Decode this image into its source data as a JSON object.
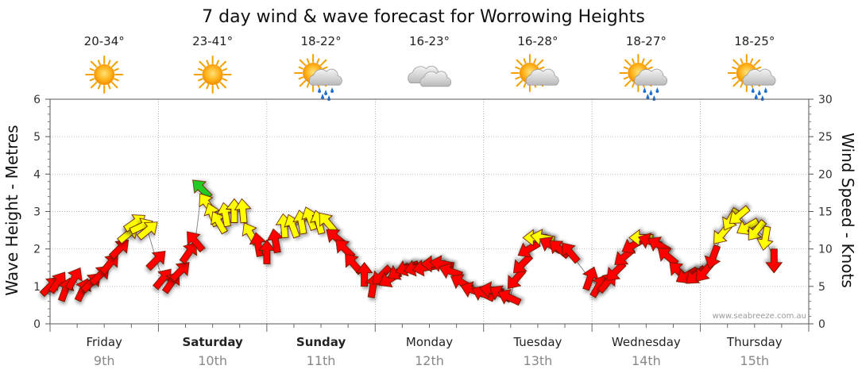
{
  "chart_data": {
    "type": "scatter",
    "title": "7 day wind & wave forecast for Worrowing Heights",
    "ylabel_left": "Wave Height - Metres",
    "ylabel_right": "Wind Speed - Knots",
    "ylim_left": [
      0,
      6
    ],
    "ylim_right": [
      0,
      30
    ],
    "yticks_left": [
      "0",
      "1",
      "2",
      "3",
      "4",
      "5",
      "6"
    ],
    "yticks_right": [
      "0",
      "5",
      "10",
      "15",
      "20",
      "25",
      "30"
    ],
    "grid": true,
    "credit": "www.seabreeze.com.au",
    "days": [
      {
        "day": "Friday",
        "date": "9th",
        "temp": "20-34°",
        "icon": "sunny-icon",
        "bold": false
      },
      {
        "day": "Saturday",
        "date": "10th",
        "temp": "23-41°",
        "icon": "sunny-icon",
        "bold": true
      },
      {
        "day": "Sunday",
        "date": "11th",
        "temp": "18-22°",
        "icon": "sun-cloud-rain-icon",
        "bold": true
      },
      {
        "day": "Monday",
        "date": "12th",
        "temp": "16-23°",
        "icon": "cloud-icon",
        "bold": false
      },
      {
        "day": "Tuesday",
        "date": "13th",
        "temp": "16-28°",
        "icon": "sun-cloud-icon",
        "bold": false
      },
      {
        "day": "Wednesday",
        "date": "14th",
        "temp": "18-27°",
        "icon": "sun-cloud-rain-icon",
        "bold": false
      },
      {
        "day": "Thursday",
        "date": "15th",
        "temp": "18-25°",
        "icon": "sun-cloud-rain-icon",
        "bold": false
      }
    ],
    "wind_colors": {
      "light": "#22cc22",
      "moderate": "#ffff00",
      "strong": "#ff0000"
    },
    "series": [
      {
        "name": "wind",
        "points": [
          {
            "t": 0.0,
            "wave": 1.0,
            "dir": 225,
            "c": "strong"
          },
          {
            "t": 0.07,
            "wave": 1.1,
            "dir": 215,
            "c": "strong"
          },
          {
            "t": 0.14,
            "wave": 0.9,
            "dir": 200,
            "c": "strong"
          },
          {
            "t": 0.22,
            "wave": 1.2,
            "dir": 210,
            "c": "strong"
          },
          {
            "t": 0.3,
            "wave": 0.9,
            "dir": 205,
            "c": "strong"
          },
          {
            "t": 0.38,
            "wave": 1.1,
            "dir": 225,
            "c": "strong"
          },
          {
            "t": 0.46,
            "wave": 1.3,
            "dir": 225,
            "c": "strong"
          },
          {
            "t": 0.55,
            "wave": 1.6,
            "dir": 220,
            "c": "strong"
          },
          {
            "t": 0.64,
            "wave": 2.0,
            "dir": 225,
            "c": "strong"
          },
          {
            "t": 0.72,
            "wave": 2.4,
            "dir": 230,
            "c": "yellow"
          },
          {
            "t": 0.78,
            "wave": 2.7,
            "dir": 235,
            "c": "yellow"
          },
          {
            "t": 0.84,
            "wave": 2.6,
            "dir": 245,
            "c": "yellow"
          },
          {
            "t": 0.9,
            "wave": 2.5,
            "dir": 230,
            "c": "yellow"
          },
          {
            "t": 0.98,
            "wave": 1.7,
            "dir": 225,
            "c": "strong"
          },
          {
            "t": 1.04,
            "wave": 1.2,
            "dir": 220,
            "c": "strong"
          },
          {
            "t": 1.12,
            "wave": 1.1,
            "dir": 215,
            "c": "strong"
          },
          {
            "t": 1.2,
            "wave": 1.4,
            "dir": 225,
            "c": "strong"
          },
          {
            "t": 1.28,
            "wave": 1.9,
            "dir": 215,
            "c": "strong"
          },
          {
            "t": 1.34,
            "wave": 2.2,
            "dir": 140,
            "c": "strong"
          },
          {
            "t": 1.4,
            "wave": 3.6,
            "dir": 135,
            "c": "light"
          },
          {
            "t": 1.45,
            "wave": 3.2,
            "dir": 145,
            "c": "yellow"
          },
          {
            "t": 1.5,
            "wave": 2.9,
            "dir": 160,
            "c": "yellow"
          },
          {
            "t": 1.56,
            "wave": 2.7,
            "dir": 150,
            "c": "yellow"
          },
          {
            "t": 1.62,
            "wave": 2.9,
            "dir": 170,
            "c": "yellow"
          },
          {
            "t": 1.7,
            "wave": 3.0,
            "dir": 180,
            "c": "yellow"
          },
          {
            "t": 1.78,
            "wave": 3.0,
            "dir": 175,
            "c": "yellow"
          },
          {
            "t": 1.85,
            "wave": 2.4,
            "dir": 150,
            "c": "yellow"
          },
          {
            "t": 1.92,
            "wave": 2.1,
            "dir": 170,
            "c": "strong"
          },
          {
            "t": 2.0,
            "wave": 1.9,
            "dir": 180,
            "c": "strong"
          },
          {
            "t": 2.08,
            "wave": 2.2,
            "dir": 170,
            "c": "strong"
          },
          {
            "t": 2.16,
            "wave": 2.6,
            "dir": 175,
            "c": "yellow"
          },
          {
            "t": 2.24,
            "wave": 2.6,
            "dir": 160,
            "c": "yellow"
          },
          {
            "t": 2.32,
            "wave": 2.7,
            "dir": 170,
            "c": "yellow"
          },
          {
            "t": 2.4,
            "wave": 2.8,
            "dir": 160,
            "c": "yellow"
          },
          {
            "t": 2.48,
            "wave": 2.7,
            "dir": 165,
            "c": "yellow"
          },
          {
            "t": 2.56,
            "wave": 2.7,
            "dir": 140,
            "c": "yellow"
          },
          {
            "t": 2.64,
            "wave": 2.3,
            "dir": 130,
            "c": "strong"
          },
          {
            "t": 2.72,
            "wave": 2.0,
            "dir": 135,
            "c": "strong"
          },
          {
            "t": 2.8,
            "wave": 1.6,
            "dir": 140,
            "c": "strong"
          },
          {
            "t": 2.9,
            "wave": 1.3,
            "dir": 180,
            "c": "strong"
          },
          {
            "t": 2.98,
            "wave": 1.0,
            "dir": 190,
            "c": "strong"
          },
          {
            "t": 3.06,
            "wave": 1.3,
            "dir": 45,
            "c": "strong"
          },
          {
            "t": 3.14,
            "wave": 1.2,
            "dir": 60,
            "c": "strong"
          },
          {
            "t": 3.22,
            "wave": 1.4,
            "dir": 60,
            "c": "strong"
          },
          {
            "t": 3.3,
            "wave": 1.5,
            "dir": 70,
            "c": "strong"
          },
          {
            "t": 3.38,
            "wave": 1.5,
            "dir": 75,
            "c": "strong"
          },
          {
            "t": 3.46,
            "wave": 1.5,
            "dir": 80,
            "c": "strong"
          },
          {
            "t": 3.54,
            "wave": 1.6,
            "dir": 90,
            "c": "strong"
          },
          {
            "t": 3.62,
            "wave": 1.6,
            "dir": 100,
            "c": "strong"
          },
          {
            "t": 3.7,
            "wave": 1.4,
            "dir": 110,
            "c": "strong"
          },
          {
            "t": 3.8,
            "wave": 1.1,
            "dir": 120,
            "c": "strong"
          },
          {
            "t": 3.9,
            "wave": 0.9,
            "dir": 110,
            "c": "strong"
          },
          {
            "t": 4.0,
            "wave": 0.8,
            "dir": 115,
            "c": "strong"
          },
          {
            "t": 4.08,
            "wave": 0.9,
            "dir": 100,
            "c": "strong"
          },
          {
            "t": 4.16,
            "wave": 0.8,
            "dir": 120,
            "c": "strong"
          },
          {
            "t": 4.24,
            "wave": 0.7,
            "dir": 115,
            "c": "strong"
          },
          {
            "t": 4.3,
            "wave": 1.2,
            "dir": 40,
            "c": "strong"
          },
          {
            "t": 4.36,
            "wave": 1.6,
            "dir": 45,
            "c": "strong"
          },
          {
            "t": 4.42,
            "wave": 2.0,
            "dir": 60,
            "c": "strong"
          },
          {
            "t": 4.48,
            "wave": 2.3,
            "dir": 90,
            "c": "yellow"
          },
          {
            "t": 4.55,
            "wave": 2.3,
            "dir": 100,
            "c": "yellow"
          },
          {
            "t": 4.62,
            "wave": 2.1,
            "dir": 120,
            "c": "strong"
          },
          {
            "t": 4.7,
            "wave": 2.0,
            "dir": 130,
            "c": "strong"
          },
          {
            "t": 4.8,
            "wave": 1.9,
            "dir": 140,
            "c": "strong"
          },
          {
            "t": 4.98,
            "wave": 1.2,
            "dir": 200,
            "c": "strong"
          },
          {
            "t": 5.06,
            "wave": 1.0,
            "dir": 210,
            "c": "strong"
          },
          {
            "t": 5.14,
            "wave": 1.1,
            "dir": 220,
            "c": "strong"
          },
          {
            "t": 5.22,
            "wave": 1.4,
            "dir": 45,
            "c": "strong"
          },
          {
            "t": 5.3,
            "wave": 1.8,
            "dir": 50,
            "c": "strong"
          },
          {
            "t": 5.38,
            "wave": 2.1,
            "dir": 60,
            "c": "strong"
          },
          {
            "t": 5.46,
            "wave": 2.3,
            "dir": 90,
            "c": "yellow"
          },
          {
            "t": 5.54,
            "wave": 2.2,
            "dir": 110,
            "c": "strong"
          },
          {
            "t": 5.62,
            "wave": 2.1,
            "dir": 120,
            "c": "strong"
          },
          {
            "t": 5.7,
            "wave": 1.8,
            "dir": 130,
            "c": "strong"
          },
          {
            "t": 5.8,
            "wave": 1.4,
            "dir": 135,
            "c": "strong"
          },
          {
            "t": 5.88,
            "wave": 1.3,
            "dir": 60,
            "c": "strong"
          },
          {
            "t": 5.96,
            "wave": 1.3,
            "dir": 50,
            "c": "strong"
          },
          {
            "t": 6.04,
            "wave": 1.4,
            "dir": 40,
            "c": "strong"
          },
          {
            "t": 6.12,
            "wave": 1.8,
            "dir": 20,
            "c": "strong"
          },
          {
            "t": 6.2,
            "wave": 2.4,
            "dir": 40,
            "c": "yellow"
          },
          {
            "t": 6.28,
            "wave": 2.8,
            "dir": 30,
            "c": "yellow"
          },
          {
            "t": 6.36,
            "wave": 2.9,
            "dir": 50,
            "c": "yellow"
          },
          {
            "t": 6.44,
            "wave": 2.6,
            "dir": 60,
            "c": "yellow"
          },
          {
            "t": 6.52,
            "wave": 2.5,
            "dir": 40,
            "c": "yellow"
          },
          {
            "t": 6.6,
            "wave": 2.3,
            "dir": 10,
            "c": "yellow"
          },
          {
            "t": 6.68,
            "wave": 1.7,
            "dir": 0,
            "c": "strong"
          }
        ]
      }
    ]
  }
}
